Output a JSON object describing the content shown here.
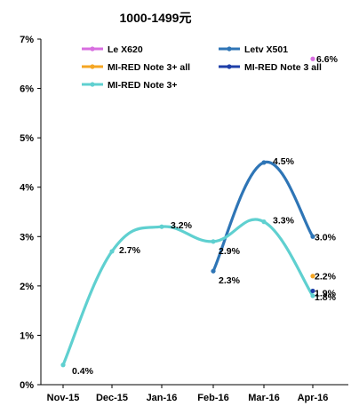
{
  "chart_data": {
    "type": "line",
    "title": "1000-1499元",
    "xlabel": "",
    "ylabel": "",
    "categories": [
      "Nov-15",
      "Dec-15",
      "Jan-16",
      "Feb-16",
      "Mar-16",
      "Apr-16"
    ],
    "ylim": [
      0,
      7
    ],
    "yticks": [
      0,
      1,
      2,
      3,
      4,
      5,
      6,
      7
    ],
    "ytick_labels": [
      "0%",
      "1%",
      "2%",
      "3%",
      "4%",
      "5%",
      "6%",
      "7%"
    ],
    "grid": false,
    "legend_position": "top",
    "series": [
      {
        "name": "Le X620",
        "color": "#d86ee0",
        "values": [
          null,
          null,
          null,
          null,
          null,
          6.6
        ],
        "labels": [
          null,
          null,
          null,
          null,
          null,
          "6.6%"
        ]
      },
      {
        "name": "Letv X501",
        "color": "#2e75b6",
        "values": [
          null,
          null,
          null,
          2.3,
          4.5,
          3.0
        ],
        "labels": [
          null,
          null,
          null,
          "2.3%",
          "4.5%",
          "3.0%"
        ]
      },
      {
        "name": "MI-RED Note 3+ all",
        "color": "#f5a623",
        "values": [
          null,
          null,
          null,
          null,
          null,
          2.2
        ],
        "labels": [
          null,
          null,
          null,
          null,
          null,
          "2.2%"
        ]
      },
      {
        "name": "MI-RED Note 3 all",
        "color": "#1f3fa8",
        "values": [
          null,
          null,
          null,
          null,
          null,
          1.9
        ],
        "labels": [
          null,
          null,
          null,
          null,
          null,
          "1.9%"
        ]
      },
      {
        "name": "MI-RED Note 3+",
        "color": "#5fd0d0",
        "values": [
          0.4,
          2.7,
          3.2,
          2.9,
          3.3,
          1.8
        ],
        "labels": [
          "0.4%",
          "2.7%",
          "3.2%",
          "2.9%",
          "3.3%",
          "1.8%"
        ]
      }
    ]
  }
}
